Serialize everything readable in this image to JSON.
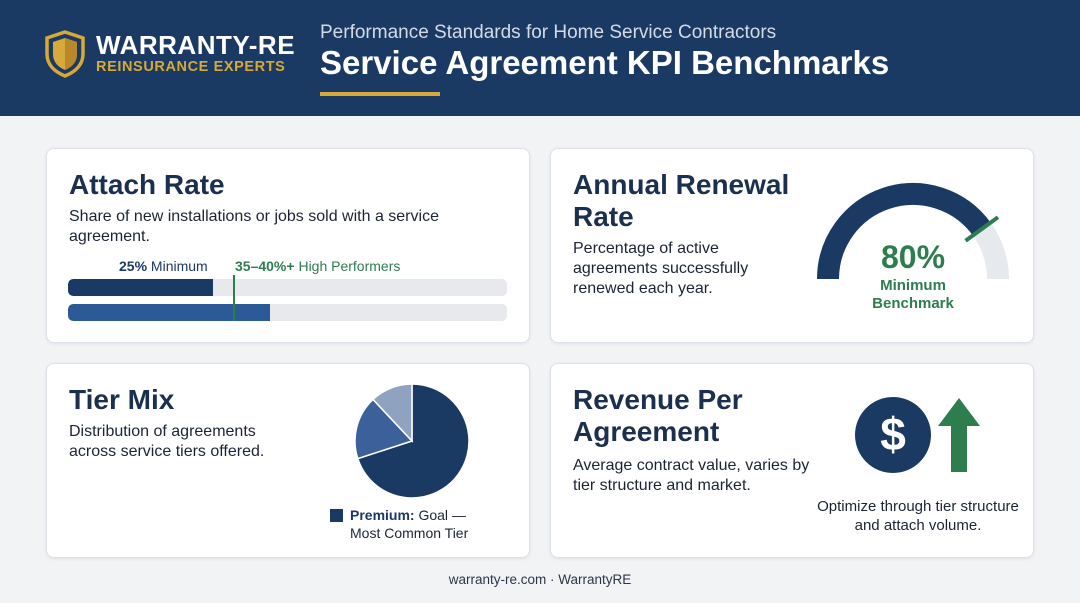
{
  "header": {
    "logo_name": "WARRANTY-RE",
    "logo_tagline": "REINSURANCE EXPERTS",
    "subtitle": "Performance Standards for Home Service Contractors",
    "title": "Service Agreement KPI Benchmarks"
  },
  "attach_rate": {
    "title": "Attach Rate",
    "description": "Share of new installations or jobs sold with a service agreement.",
    "minimum_value": "25%",
    "minimum_label": "Minimum",
    "high_value": "35–40%+",
    "high_label": "High Performers",
    "minimum_fraction": 0.33,
    "high_fraction": 0.46
  },
  "renewal_rate": {
    "title": "Annual Renewal Rate",
    "description": "Percentage of active agreements successfully renewed each year.",
    "value": "80%",
    "value_label": "Minimum Benchmark",
    "gauge_fraction": 0.8
  },
  "tier_mix": {
    "title": "Tier Mix",
    "description": "Distribution of agreements across service tiers offered.",
    "legend_name": "Premium:",
    "legend_text": "Goal — Most Common Tier",
    "slices": [
      {
        "share": 0.7,
        "color": "#1b3a63"
      },
      {
        "share": 0.18,
        "color": "#3c619a"
      },
      {
        "share": 0.12,
        "color": "#8fa3c0"
      }
    ]
  },
  "revenue": {
    "title": "Revenue Per Agreement",
    "description": "Average contract value, varies by tier structure and market.",
    "caption": "Optimize through tier structure and attach volume.",
    "dollar_symbol": "$"
  },
  "footer": "warranty-re.com · WarrantyRE",
  "colors": {
    "navy": "#1b3a63",
    "gold": "#d6a938",
    "green": "#2e7d4f",
    "blue": "#2b5a96"
  }
}
